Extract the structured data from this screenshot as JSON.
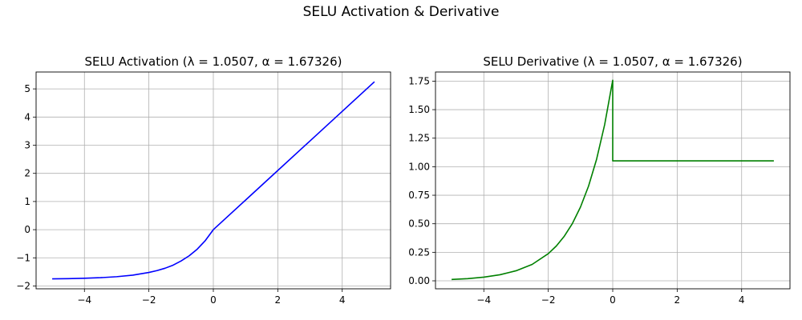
{
  "figure": {
    "suptitle": "SELU Activation & Derivative"
  },
  "chart_data": [
    {
      "type": "line",
      "title": "SELU Activation (λ = 1.0507, α = 1.67326)",
      "xlabel": "",
      "ylabel": "",
      "xlim": [
        -5.5,
        5.5
      ],
      "ylim": [
        -2.1,
        5.6
      ],
      "xticks": [
        -4,
        -2,
        0,
        2,
        4
      ],
      "xtick_labels": [
        "−4",
        "−2",
        "0",
        "2",
        "4"
      ],
      "yticks": [
        -2,
        -1,
        0,
        1,
        2,
        3,
        4,
        5
      ],
      "ytick_labels": [
        "−2",
        "−1",
        "0",
        "1",
        "2",
        "3",
        "4",
        "5"
      ],
      "grid": true,
      "series": [
        {
          "color": "#0000ff",
          "x": [
            -5,
            -4.5,
            -4,
            -3.5,
            -3,
            -2.5,
            -2,
            -1.75,
            -1.5,
            -1.25,
            -1,
            -0.75,
            -0.5,
            -0.25,
            0,
            1,
            2,
            3,
            4,
            5
          ],
          "y": [
            -1.746,
            -1.739,
            -1.726,
            -1.705,
            -1.67,
            -1.614,
            -1.52,
            -1.454,
            -1.37,
            -1.261,
            -1.111,
            -0.928,
            -0.692,
            -0.389,
            0,
            1.051,
            2.101,
            3.152,
            4.203,
            5.254
          ]
        }
      ]
    },
    {
      "type": "line",
      "title": "SELU Derivative (λ = 1.0507, α = 1.67326)",
      "xlabel": "",
      "ylabel": "",
      "xlim": [
        -5.5,
        5.5
      ],
      "ylim": [
        -0.07,
        1.83
      ],
      "xticks": [
        -4,
        -2,
        0,
        2,
        4
      ],
      "xtick_labels": [
        "−4",
        "−2",
        "0",
        "2",
        "4"
      ],
      "yticks": [
        0,
        0.25,
        0.5,
        0.75,
        1,
        1.25,
        1.5,
        1.75
      ],
      "ytick_labels": [
        "0.00",
        "0.25",
        "0.50",
        "0.75",
        "1.00",
        "1.25",
        "1.50",
        "1.75"
      ],
      "grid": true,
      "series": [
        {
          "color": "#008000",
          "x": [
            -5,
            -4.5,
            -4,
            -3.5,
            -3,
            -2.5,
            -2,
            -1.75,
            -1.5,
            -1.25,
            -1,
            -0.75,
            -0.5,
            -0.25,
            0,
            0,
            1,
            2,
            3,
            4,
            5
          ],
          "y": [
            0.012,
            0.019,
            0.032,
            0.053,
            0.088,
            0.144,
            0.238,
            0.305,
            0.392,
            0.503,
            0.647,
            0.83,
            1.066,
            1.369,
            1.758,
            1.051,
            1.051,
            1.051,
            1.051,
            1.051,
            1.051
          ]
        }
      ]
    }
  ]
}
